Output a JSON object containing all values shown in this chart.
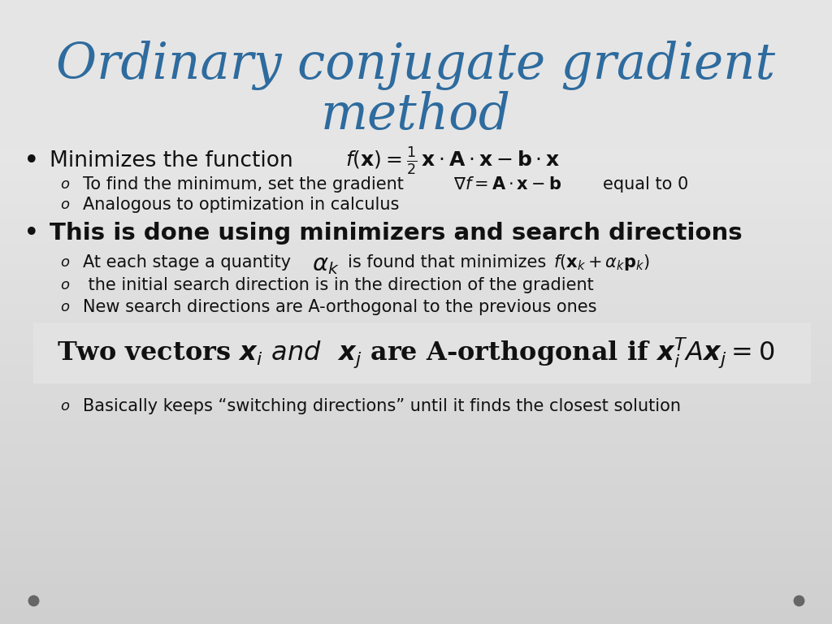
{
  "title_line1": "Ordinary conjugate gradient",
  "title_line2": "method",
  "title_color": "#2E6B9E",
  "bg_color": "#E8E8E8",
  "title_bg_color": "#DEDEDE",
  "highlight_bg": "#E4E4E4",
  "bullet1_text": "Minimizes the function",
  "bullet1_formula": "$f(\\mathbf{x}) = \\frac{1}{2}\\,\\mathbf{x} \\cdot \\mathbf{A} \\cdot \\mathbf{x} - \\mathbf{b} \\cdot \\mathbf{x}$",
  "sub1a_text": "To find the minimum, set the gradient",
  "sub1a_formula": "$\\nabla f = \\mathbf{A} \\cdot \\mathbf{x} - \\mathbf{b}$",
  "sub1a_suffix": "equal to 0",
  "sub1b_text": "Analogous to optimization in calculus",
  "bullet2_text": "This is done using minimizers and search directions",
  "sub2a_prefix": "At each stage a quantity",
  "sub2a_formula": "$\\alpha_k$",
  "sub2a_middle": "is found that minimizes",
  "sub2a_formula2": "$f(\\mathbf{x}_k + \\alpha_k \\mathbf{p}_k)$",
  "sub2b_text": " the initial search direction is in the direction of the gradient",
  "sub2c_text": "New search directions are A-orthogonal to the previous ones",
  "sub3_text": "Basically keeps “switching directions” until it finds the closest solution",
  "dot_color": "#666666",
  "text_color": "#111111"
}
